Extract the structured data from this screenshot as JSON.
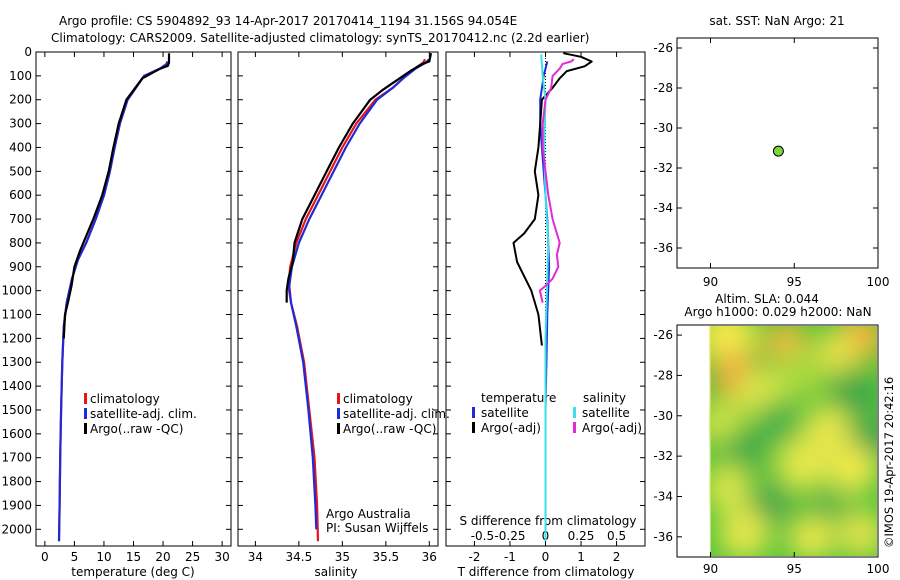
{
  "header": {
    "line1": "Argo profile: CS 5904892_93 14-Apr-2017 20170414_1194 31.156S 94.054E",
    "line2": "Climatology: CARS2009. Satellite-adjusted climatology: synTS_20170412.nc (2.2d earlier)"
  },
  "side_text": "©IMOS 19-Apr-2017 20:42:16",
  "colors": {
    "climatology": "#e8141c",
    "satellite": "#1f2bd6",
    "argo": "#000000",
    "salinity_satellite": "#38e2e6",
    "salinity_argo": "#e12bd8",
    "dot": "#7ad43a"
  },
  "chart_data": [
    {
      "type": "line",
      "panel": "temperature",
      "xlabel": "temperature (deg C)",
      "ylabel": "",
      "xlim": [
        -1.5,
        31.5
      ],
      "ylim": [
        2070,
        0
      ],
      "xticks": [
        0,
        5,
        10,
        15,
        20,
        25,
        30
      ],
      "yticks": [
        0,
        100,
        200,
        300,
        400,
        500,
        600,
        700,
        800,
        900,
        1000,
        1100,
        1200,
        1300,
        1400,
        1500,
        1600,
        1700,
        1800,
        1900,
        2000
      ],
      "legend": [
        "climatology",
        "satellite-adj. clim.",
        "Argo(..raw -QC)"
      ],
      "series": [
        {
          "name": "climatology",
          "points": [
            [
              2.4,
              2050
            ],
            [
              2.5,
              1900
            ],
            [
              2.6,
              1700
            ],
            [
              2.75,
              1500
            ],
            [
              2.95,
              1300
            ],
            [
              3.2,
              1150
            ],
            [
              3.7,
              1050
            ],
            [
              4.6,
              950
            ],
            [
              5.6,
              870
            ],
            [
              7.0,
              800
            ],
            [
              8.6,
              700
            ],
            [
              10.0,
              600
            ],
            [
              11.0,
              500
            ],
            [
              11.8,
              400
            ],
            [
              12.7,
              300
            ],
            [
              14.0,
              200
            ],
            [
              16.8,
              100
            ],
            [
              19.5,
              70
            ],
            [
              20.7,
              55
            ],
            [
              20.9,
              40
            ]
          ]
        },
        {
          "name": "satellite-adj. clim.",
          "points": [
            [
              2.4,
              2050
            ],
            [
              2.5,
              1900
            ],
            [
              2.6,
              1700
            ],
            [
              2.75,
              1500
            ],
            [
              2.95,
              1300
            ],
            [
              3.2,
              1150
            ],
            [
              3.7,
              1050
            ],
            [
              4.6,
              950
            ],
            [
              5.6,
              870
            ],
            [
              7.0,
              800
            ],
            [
              8.6,
              700
            ],
            [
              10.0,
              600
            ],
            [
              11.0,
              500
            ],
            [
              11.8,
              400
            ],
            [
              12.7,
              300
            ],
            [
              14.0,
              200
            ],
            [
              16.8,
              100
            ],
            [
              19.6,
              68
            ],
            [
              20.6,
              50
            ],
            [
              20.7,
              40
            ]
          ]
        },
        {
          "name": "Argo(..raw -QC)",
          "points": [
            [
              3.2,
              1200
            ],
            [
              3.4,
              1100
            ],
            [
              3.9,
              1050
            ],
            [
              4.5,
              980
            ],
            [
              5.0,
              900
            ],
            [
              6.0,
              830
            ],
            [
              6.5,
              800
            ],
            [
              8.2,
              700
            ],
            [
              9.7,
              600
            ],
            [
              10.8,
              500
            ],
            [
              11.6,
              400
            ],
            [
              12.5,
              300
            ],
            [
              13.8,
              200
            ],
            [
              16.5,
              110
            ],
            [
              19.5,
              70
            ],
            [
              20.8,
              58
            ],
            [
              21.0,
              45
            ],
            [
              21.0,
              5
            ]
          ]
        }
      ]
    },
    {
      "type": "line",
      "panel": "salinity",
      "xlabel": "salinity",
      "ylabel": "",
      "xlim": [
        33.8,
        36.1
      ],
      "ylim": [
        2070,
        0
      ],
      "xticks": [
        34,
        34.5,
        35,
        35.5,
        36
      ],
      "legend": [
        "climatology",
        "satellite-adj. clim.",
        "Argo(..raw -QC)"
      ],
      "series": [
        {
          "name": "climatology",
          "points": [
            [
              34.72,
              2050
            ],
            [
              34.71,
              1900
            ],
            [
              34.68,
              1700
            ],
            [
              34.62,
              1500
            ],
            [
              34.56,
              1300
            ],
            [
              34.48,
              1150
            ],
            [
              34.41,
              1050
            ],
            [
              34.38,
              980
            ],
            [
              34.4,
              900
            ],
            [
              34.47,
              800
            ],
            [
              34.58,
              700
            ],
            [
              34.72,
              600
            ],
            [
              34.86,
              500
            ],
            [
              35.0,
              400
            ],
            [
              35.16,
              300
            ],
            [
              35.38,
              200
            ],
            [
              35.58,
              150
            ],
            [
              35.7,
              110
            ],
            [
              35.83,
              70
            ],
            [
              35.93,
              45
            ],
            [
              35.95,
              30
            ]
          ]
        },
        {
          "name": "satellite-adj. clim.",
          "points": [
            [
              34.7,
              2000
            ],
            [
              34.69,
              1900
            ],
            [
              34.66,
              1700
            ],
            [
              34.61,
              1500
            ],
            [
              34.55,
              1300
            ],
            [
              34.47,
              1150
            ],
            [
              34.41,
              1050
            ],
            [
              34.39,
              980
            ],
            [
              34.42,
              900
            ],
            [
              34.5,
              800
            ],
            [
              34.62,
              700
            ],
            [
              34.76,
              600
            ],
            [
              34.9,
              500
            ],
            [
              35.04,
              400
            ],
            [
              35.2,
              300
            ],
            [
              35.4,
              200
            ],
            [
              35.58,
              150
            ],
            [
              35.7,
              110
            ],
            [
              35.84,
              70
            ],
            [
              35.96,
              45
            ],
            [
              36.0,
              30
            ]
          ]
        },
        {
          "name": "Argo(..raw -QC)",
          "points": [
            [
              34.36,
              1050
            ],
            [
              34.36,
              1000
            ],
            [
              34.38,
              950
            ],
            [
              34.43,
              880
            ],
            [
              34.45,
              800
            ],
            [
              34.54,
              700
            ],
            [
              34.68,
              600
            ],
            [
              34.82,
              500
            ],
            [
              34.96,
              400
            ],
            [
              35.12,
              300
            ],
            [
              35.32,
              200
            ],
            [
              35.46,
              160
            ],
            [
              35.66,
              110
            ],
            [
              35.78,
              80
            ],
            [
              35.92,
              50
            ],
            [
              36.0,
              40
            ],
            [
              36.02,
              5
            ]
          ]
        }
      ]
    },
    {
      "type": "line",
      "panel": "difference",
      "xlabel": "T difference from climatology",
      "title": "S difference from climatology",
      "xlim": [
        -2.8,
        2.8
      ],
      "ylim": [
        2070,
        0
      ],
      "xticks": [
        -2,
        -1,
        0,
        1,
        2
      ],
      "s_xticks": [
        "-0.5",
        "-0.25",
        "0",
        "0.25",
        "0.5"
      ],
      "legend": {
        "temperature_heading": "temperature",
        "salinity_heading": "salinity",
        "temp_satellite": "satellite",
        "temp_argo": "Argo(-adj)",
        "sal_satellite": "satellite",
        "sal_argo": "Argo(-adj)"
      },
      "series": [
        {
          "name": "temperature satellite",
          "points": [
            [
              0.0,
              2050
            ],
            [
              0.0,
              1500
            ],
            [
              0.05,
              1100
            ],
            [
              0.1,
              900
            ],
            [
              0.05,
              700
            ],
            [
              -0.05,
              500
            ],
            [
              -0.1,
              400
            ],
            [
              -0.15,
              300
            ],
            [
              -0.15,
              200
            ],
            [
              -0.05,
              100
            ],
            [
              0.05,
              40
            ]
          ]
        },
        {
          "name": "temperature Argo(-adj)",
          "points": [
            [
              -0.1,
              1230
            ],
            [
              -0.2,
              1100
            ],
            [
              -0.4,
              1000
            ],
            [
              -0.6,
              940
            ],
            [
              -0.8,
              880
            ],
            [
              -0.9,
              800
            ],
            [
              -0.6,
              760
            ],
            [
              -0.3,
              700
            ],
            [
              -0.2,
              600
            ],
            [
              -0.3,
              500
            ],
            [
              -0.2,
              400
            ],
            [
              -0.15,
              300
            ],
            [
              -0.1,
              200
            ],
            [
              0.2,
              150
            ],
            [
              0.4,
              110
            ],
            [
              0.6,
              80
            ],
            [
              1.1,
              60
            ],
            [
              1.3,
              40
            ],
            [
              1.0,
              20
            ],
            [
              0.5,
              5
            ]
          ]
        },
        {
          "name": "salinity satellite",
          "points": [
            [
              0.0,
              2050
            ],
            [
              0.0,
              1500
            ],
            [
              0.0,
              1200
            ],
            [
              0.01,
              1000
            ],
            [
              0.02,
              800
            ],
            [
              0.0,
              600
            ],
            [
              -0.01,
              400
            ],
            [
              0.0,
              200
            ],
            [
              -0.02,
              100
            ],
            [
              -0.03,
              10
            ]
          ]
        },
        {
          "name": "salinity Argo(-adj)",
          "points": [
            [
              -0.02,
              1050
            ],
            [
              -0.04,
              1000
            ],
            [
              0.0,
              980
            ],
            [
              0.05,
              950
            ],
            [
              0.09,
              900
            ],
            [
              0.08,
              850
            ],
            [
              0.1,
              800
            ],
            [
              0.05,
              700
            ],
            [
              0.02,
              600
            ],
            [
              0.0,
              500
            ],
            [
              -0.02,
              400
            ],
            [
              -0.02,
              300
            ],
            [
              0.0,
              200
            ],
            [
              0.04,
              150
            ],
            [
              0.05,
              100
            ],
            [
              0.1,
              70
            ],
            [
              0.12,
              50
            ],
            [
              0.18,
              40
            ],
            [
              0.2,
              30
            ]
          ]
        }
      ]
    },
    {
      "type": "scatter",
      "panel": "location",
      "title": "sat. SST: NaN Argo: 21",
      "xlim": [
        88,
        100
      ],
      "ylim": [
        -37,
        -25.5
      ],
      "xticks": [
        90,
        95,
        100
      ],
      "yticks": [
        -26,
        -28,
        -30,
        -32,
        -34,
        -36
      ],
      "points": [
        [
          94.054,
          -31.156
        ]
      ]
    },
    {
      "type": "heatmap",
      "panel": "altimetry",
      "title_line1": "Altim. SLA: 0.044",
      "title_line2": "Argo h1000: 0.029 h2000: NaN",
      "xlim": [
        88,
        100
      ],
      "ylim": [
        -37,
        -25.5
      ],
      "xticks": [
        90,
        95,
        100
      ],
      "yticks": [
        -26,
        -28,
        -30,
        -32,
        -34,
        -36
      ]
    }
  ]
}
